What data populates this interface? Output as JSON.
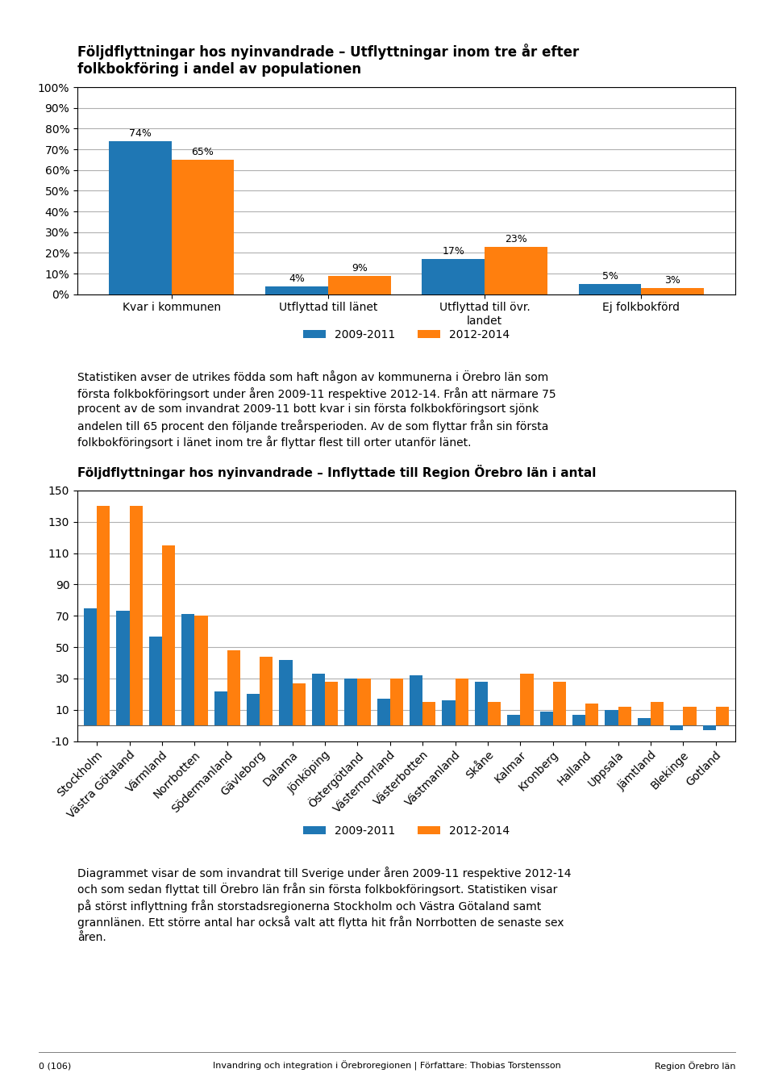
{
  "chart_data": [
    {
      "type": "bar",
      "title": "Följdflyttningar hos nyinvandrade – Utflyttningar inom tre år efter\nfolkbokföring i andel av populationen",
      "categories": [
        "Kvar i kommunen",
        "Utflyttad till länet",
        "Utflyttad till övr.\nlandet",
        "Ej folkbokförd"
      ],
      "series": [
        {
          "name": "2009-2011",
          "values": [
            74,
            4,
            17,
            5
          ],
          "value_labels": [
            "74%",
            "4%",
            "17%",
            "5%"
          ]
        },
        {
          "name": "2012-2014",
          "values": [
            65,
            9,
            23,
            3
          ],
          "value_labels": [
            "65%",
            "9%",
            "23%",
            "3%"
          ]
        }
      ],
      "ylim": [
        0,
        100
      ],
      "yticks": [
        {
          "value": 0,
          "label": "0%"
        },
        {
          "value": 10,
          "label": "10%"
        },
        {
          "value": 20,
          "label": "20%"
        },
        {
          "value": 30,
          "label": "30%"
        },
        {
          "value": 40,
          "label": "40%"
        },
        {
          "value": 50,
          "label": "50%"
        },
        {
          "value": 60,
          "label": "60%"
        },
        {
          "value": 70,
          "label": "70%"
        },
        {
          "value": 80,
          "label": "80%"
        },
        {
          "value": 90,
          "label": "90%"
        },
        {
          "value": 100,
          "label": "100%"
        }
      ],
      "grid": true,
      "legend": "lower center",
      "data_labels": true,
      "annotations": [
        "Statistiken avser de utrikes födda som haft någon av kommunerna i Örebro län som",
        "första folkbokföringsort under åren 2009-11 respektive 2012-14. Från att närmare 75",
        "procent av de som invandrat 2009-11 bott kvar i sin första folkbokföringsort sjönk",
        "andelen till 65 procent den följande treårsperioden. Av de som flyttar från sin första",
        "folkbokföringsort i länet inom tre år flyttar flest till orter utanför länet."
      ]
    },
    {
      "type": "bar",
      "title": "Följdflyttningar hos nyinvandrade – Inflyttade till Region Örebro län i antal",
      "categories": [
        "Stockholm",
        "Västra Götaland",
        "Värmland",
        "Norrbotten",
        "Södermanland",
        "Gävleborg",
        "Dalarna",
        "Jönköping",
        "Östergötland",
        "Västernorrland",
        "Västerbotten",
        "Västmanland",
        "Skåne",
        "Kalmar",
        "Kronberg",
        "Halland",
        "Uppsala",
        "Jämtland",
        "Blekinge",
        "Gotland"
      ],
      "series": [
        {
          "name": "2009-2011",
          "values": [
            75,
            73,
            57,
            71,
            22,
            20,
            42,
            33,
            30,
            17,
            32,
            16,
            28,
            7,
            9,
            7,
            10,
            5,
            -3,
            -3
          ]
        },
        {
          "name": "2012-2014",
          "values": [
            140,
            140,
            115,
            70,
            48,
            44,
            27,
            28,
            30,
            30,
            15,
            30,
            15,
            33,
            28,
            14,
            12,
            15,
            12,
            12
          ]
        }
      ],
      "ylim": [
        -10,
        150
      ],
      "yticks": [
        -10,
        10,
        30,
        50,
        70,
        90,
        110,
        130,
        150
      ],
      "grid": true,
      "legend": "lower center",
      "data_labels": false,
      "annotations": [
        "Diagrammet visar de som invandrat till Sverige under åren 2009-11 respektive 2012-14",
        "och som sedan flyttat till Örebro län från sin första folkbokföringsort. Statistiken visar",
        "på störst inflyttning från storstadsregionerna Stockholm och Västra Götaland samt",
        "grannlänen. Ett större antal har också valt att flytta hit från Norrbotten de senaste sex",
        "åren."
      ]
    }
  ],
  "footer": [
    "0 (106)",
    "Invandring och integration i Örebroregionen | Författare: Thobias Torstensson",
    "Region Örebro län"
  ]
}
